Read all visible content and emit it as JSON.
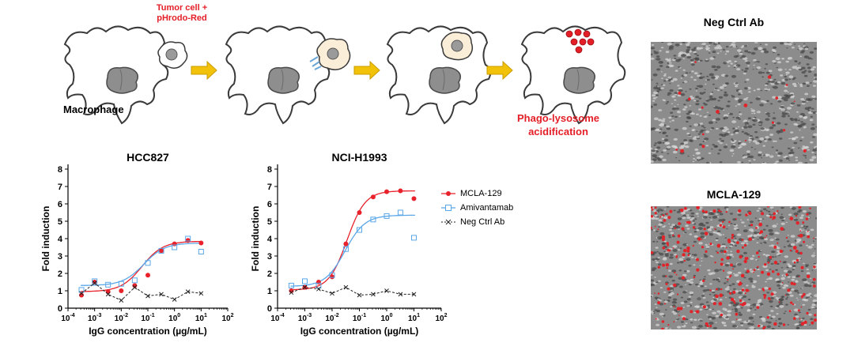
{
  "schematic": {
    "tumor_label_line1": "Tumor cell +",
    "tumor_label_line2": "pHrodo-Red",
    "macrophage_label": "Macrophage",
    "result_label_line1": "Phago-lysosome",
    "result_label_line2": "acidification"
  },
  "images": [
    {
      "title": "Neg Ctrl Ab"
    },
    {
      "title": "MCLA-129"
    }
  ],
  "colors": {
    "mcla": "#e8212b",
    "amivantamab": "#5aa7e8",
    "negctrl": "#222222",
    "arrow": "#f2c20a",
    "red_text": "#e41e26"
  },
  "chart_data": [
    {
      "type": "scatter",
      "title": "HCC827",
      "xlabel": "IgG concentration (µg/mL)",
      "ylabel": "Fold induction",
      "xscale": "log",
      "xlim": [
        0.0001,
        100
      ],
      "ylim": [
        0,
        8
      ],
      "xtick_labels": [
        "10-4",
        "10-3",
        "10-2",
        "10-1",
        "100",
        "101",
        "102"
      ],
      "yticks": [
        0,
        1,
        2,
        3,
        4,
        5,
        6,
        7,
        8
      ],
      "series": [
        {
          "name": "MCLA-129",
          "style": "fitted curve with filled circles",
          "x": [
            0.00032,
            0.001,
            0.0032,
            0.01,
            0.032,
            0.1,
            0.32,
            1,
            3.2,
            10
          ],
          "y": [
            0.75,
            1.5,
            0.95,
            1.0,
            1.3,
            1.9,
            3.3,
            3.7,
            3.9,
            3.75
          ]
        },
        {
          "name": "Amivantamab",
          "style": "fitted curve with open squares",
          "x": [
            0.00032,
            0.001,
            0.0032,
            0.01,
            0.032,
            0.1,
            0.32,
            1,
            3.2,
            10
          ],
          "y": [
            1.05,
            1.55,
            1.35,
            1.4,
            1.6,
            2.6,
            3.3,
            3.5,
            4.0,
            3.25
          ]
        },
        {
          "name": "Neg Ctrl Ab",
          "style": "dashed line with crosses",
          "x": [
            0.00032,
            0.001,
            0.0032,
            0.01,
            0.032,
            0.1,
            0.32,
            1,
            3.2,
            10
          ],
          "y": [
            0.85,
            1.45,
            0.8,
            0.45,
            1.2,
            0.7,
            0.8,
            0.5,
            0.95,
            0.85
          ]
        }
      ]
    },
    {
      "type": "scatter",
      "title": "NCI-H1993",
      "xlabel": "IgG concentration (µg/mL)",
      "ylabel": "Fold induction",
      "xscale": "log",
      "xlim": [
        0.0001,
        100
      ],
      "ylim": [
        0,
        8
      ],
      "xtick_labels": [
        "10-4",
        "10-3",
        "10-2",
        "10-1",
        "100",
        "101",
        "102"
      ],
      "yticks": [
        0,
        1,
        2,
        3,
        4,
        5,
        6,
        7,
        8
      ],
      "series": [
        {
          "name": "MCLA-129",
          "style": "fitted curve with filled circles",
          "x": [
            0.00032,
            0.001,
            0.0032,
            0.01,
            0.032,
            0.1,
            0.32,
            1,
            3.2,
            10
          ],
          "y": [
            1.0,
            1.2,
            1.5,
            1.8,
            3.7,
            5.5,
            6.4,
            6.7,
            6.75,
            6.3
          ]
        },
        {
          "name": "Amivantamab",
          "style": "fitted curve with open squares",
          "x": [
            0.00032,
            0.001,
            0.0032,
            0.01,
            0.032,
            0.1,
            0.32,
            1,
            3.2,
            10
          ],
          "y": [
            1.3,
            1.55,
            1.3,
            1.9,
            3.4,
            4.5,
            5.1,
            5.3,
            5.5,
            4.05
          ]
        },
        {
          "name": "Neg Ctrl Ab",
          "style": "dashed line with crosses",
          "x": [
            0.00032,
            0.001,
            0.0032,
            0.01,
            0.032,
            0.1,
            0.32,
            1,
            3.2,
            10
          ],
          "y": [
            0.9,
            1.2,
            1.1,
            0.85,
            1.2,
            0.75,
            0.8,
            1.0,
            0.8,
            0.8
          ]
        }
      ]
    }
  ],
  "legend": {
    "placement": "right of NCI-H1993 chart",
    "items": [
      "MCLA-129",
      "Amivantamab",
      "Neg Ctrl Ab"
    ]
  }
}
